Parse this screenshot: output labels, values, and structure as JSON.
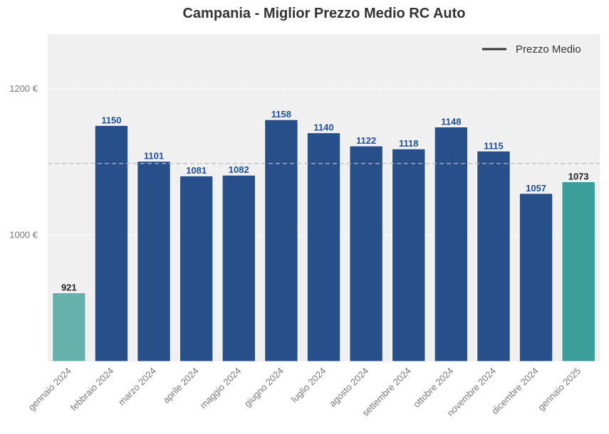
{
  "chart_data": {
    "type": "bar",
    "title": "Campania - Miglior Prezzo Medio RC Auto",
    "xlabel": "",
    "ylabel": "",
    "categories": [
      "gennaio 2024",
      "febbraio 2024",
      "marzo 2024",
      "aprile 2024",
      "maggio 2024",
      "giugno 2024",
      "luglio 2024",
      "agosto 2024",
      "settembre 2024",
      "ottobre 2024",
      "novembre 2024",
      "dicembre 2024",
      "gennaio 2025"
    ],
    "values": [
      921,
      1150,
      1101,
      1081,
      1082,
      1158,
      1140,
      1122,
      1118,
      1148,
      1115,
      1057,
      1073
    ],
    "data_labels": [
      "921",
      "1150",
      "1101",
      "1081",
      "1082",
      "1158",
      "1140",
      "1122",
      "1118",
      "1148",
      "1115",
      "1057",
      "1073"
    ],
    "bar_colors": [
      "#66b2ad",
      "#274f8a",
      "#274f8a",
      "#274f8a",
      "#274f8a",
      "#274f8a",
      "#274f8a",
      "#274f8a",
      "#274f8a",
      "#274f8a",
      "#274f8a",
      "#274f8a",
      "#3c9e98"
    ],
    "label_colors": [
      "#222222",
      "#1f4e96",
      "#1f4e96",
      "#1f4e96",
      "#1f4e96",
      "#1f4e96",
      "#1f4e96",
      "#1f4e96",
      "#1f4e96",
      "#1f4e96",
      "#1f4e96",
      "#1f4e96",
      "#222222"
    ],
    "ylim": [
      827,
      1275
    ],
    "yticks": [
      {
        "value": 1000,
        "label": "1000 €"
      },
      {
        "value": 1200,
        "label": "1200 €"
      }
    ],
    "average_line": {
      "value": 1098,
      "name": "Prezzo Medio",
      "color": "#bbbbbb"
    },
    "legend": {
      "position": "top-right",
      "entries": [
        {
          "name": "Prezzo Medio",
          "color": "#333333"
        }
      ]
    },
    "grid": true,
    "background_color": "#f0f0f0"
  }
}
